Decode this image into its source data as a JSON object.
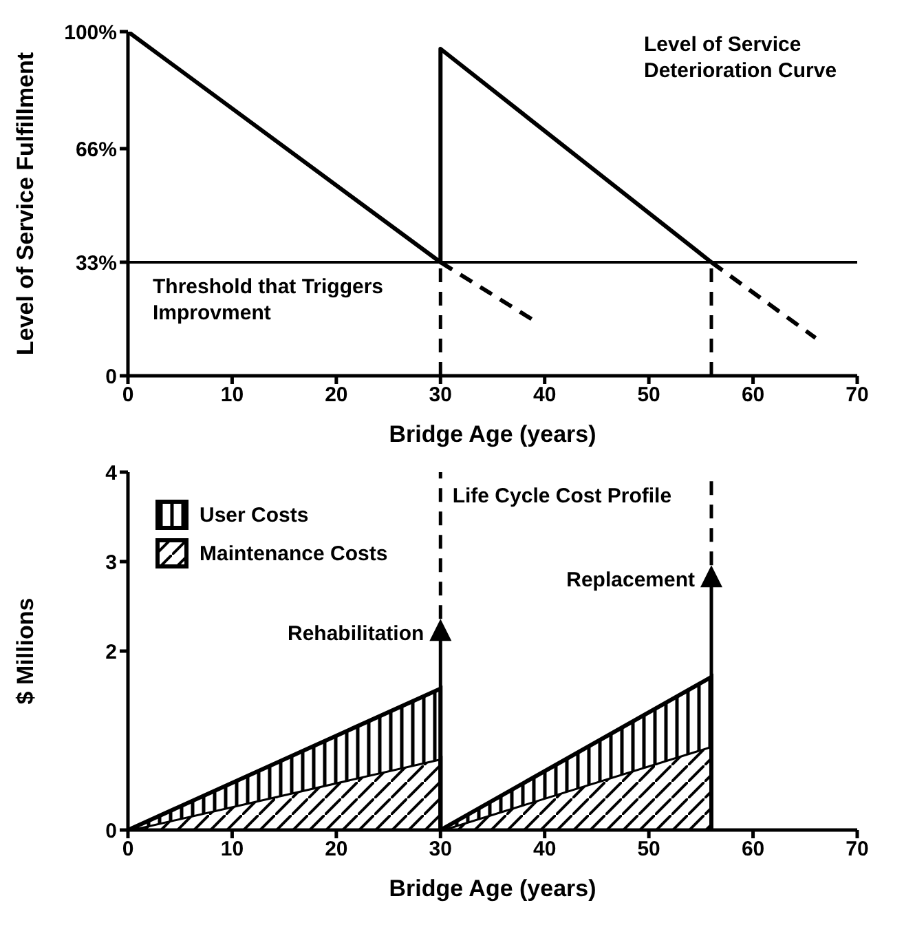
{
  "chart_data": [
    {
      "type": "line",
      "xlabel": "Bridge Age (years)",
      "ylabel": "Level of Service Fulfillment",
      "xlim": [
        0,
        70
      ],
      "xticks": [
        0,
        10,
        20,
        30,
        40,
        50,
        60,
        70
      ],
      "ylim": [
        0,
        100
      ],
      "yticks": [
        0,
        {
          "value": 33,
          "label": "33%"
        },
        {
          "value": 66,
          "label": "66%"
        },
        {
          "value": 100,
          "label": "100%"
        }
      ],
      "grid": false,
      "marker": "none",
      "series": [
        {
          "x": [
            0,
            30,
            30,
            56
          ],
          "values": [
            100,
            33,
            95,
            33
          ],
          "color": "#000000",
          "line_style": "solid"
        },
        {
          "x": [
            30,
            39
          ],
          "values": [
            33,
            16
          ],
          "color": "#000000",
          "line_style": "dashed"
        },
        {
          "x": [
            56,
            66
          ],
          "values": [
            33,
            11
          ],
          "color": "#000000",
          "line_style": "dashed"
        }
      ],
      "ref_lines": [
        {
          "axis": "y",
          "value": 33,
          "label": "Threshold that Triggers Improvment",
          "color": "#000000",
          "line_style": "solid"
        },
        {
          "axis": "x",
          "value": 30,
          "color": "#000000",
          "line_style": "dashed"
        },
        {
          "axis": "x",
          "value": 56,
          "color": "#000000",
          "line_style": "dashed"
        }
      ],
      "annotations": [
        "Level of Service Deterioration Curve"
      ]
    },
    {
      "type": "area",
      "stacked": true,
      "xlabel": "Bridge Age (years)",
      "ylabel": "$ Millions",
      "xlim": [
        0,
        70
      ],
      "xticks": [
        0,
        10,
        20,
        30,
        40,
        50,
        60,
        70
      ],
      "ylim": [
        0,
        4
      ],
      "yticks": [
        0,
        2,
        3,
        4
      ],
      "grid": false,
      "legend": "top left",
      "x": [
        0,
        30,
        30,
        56,
        56
      ],
      "series": [
        {
          "name": "Maintenance Costs",
          "color": "#000000",
          "values": [
            0,
            0.8,
            0,
            0.94,
            0
          ]
        },
        {
          "name": "User Costs",
          "color": "#000000",
          "values": [
            0,
            0.78,
            0,
            0.77,
            0
          ]
        }
      ],
      "ref_lines": [
        {
          "axis": "x",
          "value": 30,
          "label": "Rehabilitation",
          "color": "#000000",
          "line_style": "dashed"
        },
        {
          "axis": "x",
          "value": 56,
          "label": "Replacement",
          "color": "#000000",
          "line_style": "dashed"
        }
      ],
      "annotations": [
        "Life Cycle Cost Profile"
      ]
    }
  ]
}
